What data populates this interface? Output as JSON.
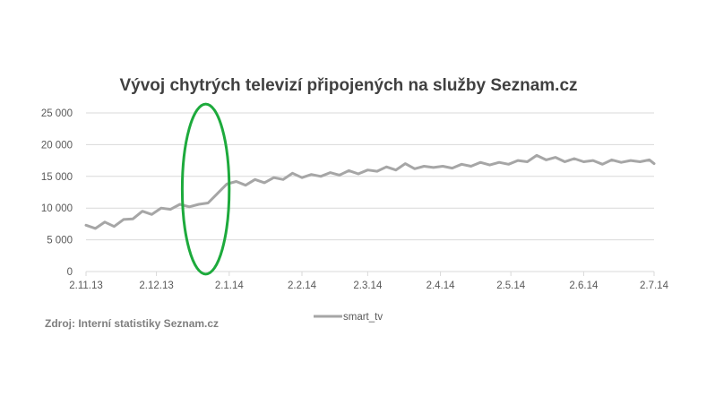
{
  "chart_data": {
    "type": "line",
    "title": "Vývoj chytrých televizí připojených na služby Seznam.cz",
    "xlabel": "",
    "ylabel": "",
    "ylim": [
      0,
      25000
    ],
    "y_ticks": [
      0,
      5000,
      10000,
      15000,
      20000,
      25000
    ],
    "y_tick_labels": [
      "0",
      "5 000",
      "10 000",
      "15 000",
      "20 000",
      "25 000"
    ],
    "x_tick_labels": [
      "2.11.13",
      "2.12.13",
      "2.1.14",
      "2.2.14",
      "2.3.14",
      "2.4.14",
      "2.5.14",
      "2.6.14",
      "2.7.14"
    ],
    "grid": true,
    "legend": "bottom-center",
    "series": [
      {
        "name": "smart_tv",
        "color": "#a6a6a6",
        "points": [
          [
            "2013-11-02",
            7300
          ],
          [
            "2013-11-06",
            6800
          ],
          [
            "2013-11-10",
            7800
          ],
          [
            "2013-11-14",
            7100
          ],
          [
            "2013-11-18",
            8200
          ],
          [
            "2013-11-22",
            8300
          ],
          [
            "2013-11-26",
            9500
          ],
          [
            "2013-11-30",
            9000
          ],
          [
            "2013-12-04",
            10000
          ],
          [
            "2013-12-08",
            9800
          ],
          [
            "2013-12-12",
            10600
          ],
          [
            "2013-12-16",
            10200
          ],
          [
            "2013-12-20",
            10600
          ],
          [
            "2013-12-24",
            10800
          ],
          [
            "2013-12-28",
            12300
          ],
          [
            "2014-01-01",
            13800
          ],
          [
            "2014-01-05",
            14200
          ],
          [
            "2014-01-09",
            13600
          ],
          [
            "2014-01-13",
            14500
          ],
          [
            "2014-01-17",
            14000
          ],
          [
            "2014-01-21",
            14800
          ],
          [
            "2014-01-25",
            14500
          ],
          [
            "2014-01-29",
            15500
          ],
          [
            "2014-02-02",
            14800
          ],
          [
            "2014-02-06",
            15300
          ],
          [
            "2014-02-10",
            15000
          ],
          [
            "2014-02-14",
            15600
          ],
          [
            "2014-02-18",
            15200
          ],
          [
            "2014-02-22",
            15900
          ],
          [
            "2014-02-26",
            15400
          ],
          [
            "2014-03-02",
            16000
          ],
          [
            "2014-03-06",
            15800
          ],
          [
            "2014-03-10",
            16500
          ],
          [
            "2014-03-14",
            16000
          ],
          [
            "2014-03-18",
            17000
          ],
          [
            "2014-03-22",
            16200
          ],
          [
            "2014-03-26",
            16600
          ],
          [
            "2014-03-30",
            16400
          ],
          [
            "2014-04-03",
            16600
          ],
          [
            "2014-04-07",
            16300
          ],
          [
            "2014-04-11",
            16900
          ],
          [
            "2014-04-15",
            16600
          ],
          [
            "2014-04-19",
            17200
          ],
          [
            "2014-04-23",
            16800
          ],
          [
            "2014-04-27",
            17200
          ],
          [
            "2014-05-01",
            16900
          ],
          [
            "2014-05-05",
            17500
          ],
          [
            "2014-05-09",
            17300
          ],
          [
            "2014-05-13",
            18300
          ],
          [
            "2014-05-17",
            17600
          ],
          [
            "2014-05-21",
            18000
          ],
          [
            "2014-05-25",
            17300
          ],
          [
            "2014-05-29",
            17800
          ],
          [
            "2014-06-02",
            17300
          ],
          [
            "2014-06-06",
            17500
          ],
          [
            "2014-06-10",
            16900
          ],
          [
            "2014-06-14",
            17600
          ],
          [
            "2014-06-18",
            17200
          ],
          [
            "2014-06-22",
            17500
          ],
          [
            "2014-06-26",
            17300
          ],
          [
            "2014-06-30",
            17600
          ],
          [
            "2014-07-02",
            17000
          ]
        ]
      }
    ],
    "annotations": [
      {
        "type": "ellipse",
        "color": "#1daa3c",
        "x_center": "2013-12-23",
        "y_center": 13000,
        "x_halfwidth_days": 10,
        "y_halfheight": 13400
      }
    ],
    "source_note": "Zdroj: Interní statistiky Seznam.cz"
  }
}
